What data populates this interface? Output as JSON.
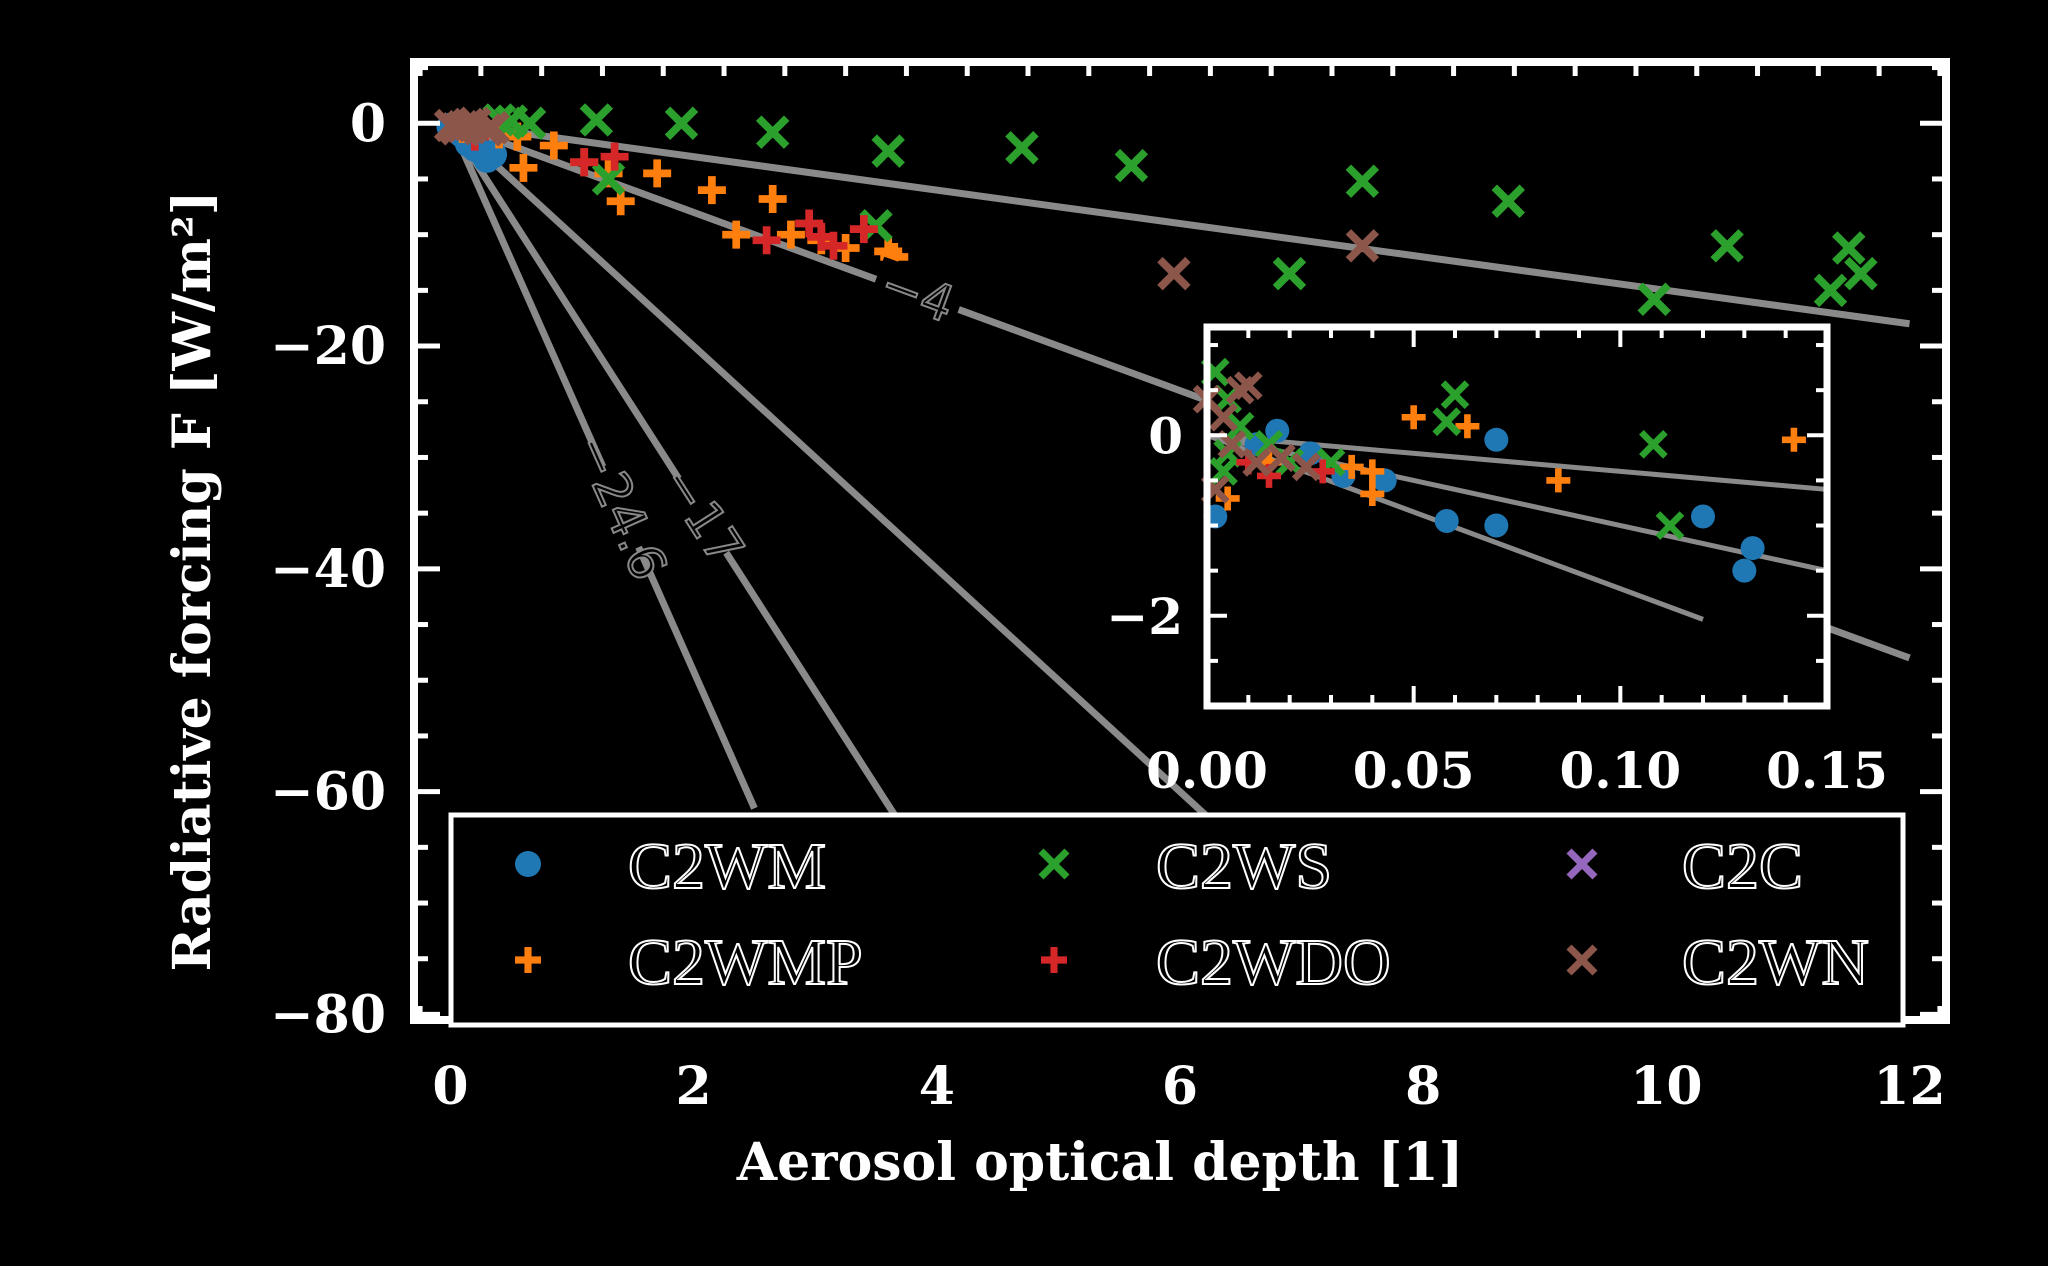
{
  "colors": {
    "background": "#000000",
    "frame": "#ffffff",
    "fit_line": "#8a8a8a",
    "C2WM": "#1f77b4",
    "C2WMP": "#ff7f0e",
    "C2WS": "#2ca02c",
    "C2WDO": "#d62728",
    "C2C": "#9467bd",
    "C2WN": "#8c564b"
  },
  "chart_data": [
    {
      "type": "scatter",
      "panel": "main",
      "xlabel": "Aerosol optical depth [1]",
      "ylabel": "Radiative forcing F [W/m²]",
      "xlim": [
        -0.3,
        12.3
      ],
      "ylim": [
        -80.5,
        5.5
      ],
      "xticks": [
        0,
        2,
        4,
        6,
        8,
        10,
        12
      ],
      "yticks": [
        0,
        -20,
        -40,
        -60,
        -80
      ],
      "xtick_labels": [
        "0",
        "2",
        "4",
        "6",
        "8",
        "10",
        "12"
      ],
      "ytick_labels": [
        "0",
        "−20",
        "−40",
        "−60",
        "−80"
      ],
      "legend_position": "lower",
      "fit_lines": [
        {
          "slope": -1.5,
          "x_range": [
            0,
            12
          ]
        },
        {
          "slope": -4,
          "x_range": [
            0,
            12
          ],
          "label": "−4"
        },
        {
          "slope": -17,
          "x_range": [
            0,
            3.7
          ],
          "label": "−17"
        },
        {
          "slope": -24.6,
          "x_range": [
            0,
            2.5
          ],
          "label": "−24.6"
        },
        {
          "slope": -10,
          "x_range": [
            0,
            6.5
          ]
        }
      ],
      "series": [
        {
          "name": "C2WM",
          "marker": "circle",
          "points": [
            [
              0.0,
              -0.3
            ],
            [
              0.1,
              -1.0
            ],
            [
              0.15,
              -1.8
            ],
            [
              0.2,
              -2.2
            ],
            [
              0.25,
              -2.5
            ],
            [
              0.3,
              -3.2
            ],
            [
              0.35,
              -2.8
            ]
          ]
        },
        {
          "name": "C2WMP",
          "marker": "plus",
          "points": [
            [
              0.1,
              -0.5
            ],
            [
              0.4,
              -1.0
            ],
            [
              0.55,
              -1.2
            ],
            [
              0.6,
              -4.0
            ],
            [
              0.85,
              -2.0
            ],
            [
              1.1,
              -3.5
            ],
            [
              1.3,
              -4.5
            ],
            [
              1.4,
              -7.0
            ],
            [
              1.7,
              -4.5
            ],
            [
              2.15,
              -6.0
            ],
            [
              2.35,
              -10.0
            ],
            [
              2.65,
              -6.8
            ],
            [
              2.8,
              -10.0
            ],
            [
              3.05,
              -10.5
            ],
            [
              3.25,
              -11.2
            ],
            [
              3.6,
              -11.5
            ],
            [
              3.65,
              -12.0
            ]
          ]
        },
        {
          "name": "C2WS",
          "marker": "x",
          "points": [
            [
              0.4,
              0.3
            ],
            [
              0.5,
              0.2
            ],
            [
              0.65,
              0.0
            ],
            [
              1.2,
              0.3
            ],
            [
              1.3,
              -5.0
            ],
            [
              1.9,
              0.0
            ],
            [
              2.65,
              -0.8
            ],
            [
              3.5,
              -9.2
            ],
            [
              3.6,
              -2.5
            ],
            [
              4.7,
              -2.2
            ],
            [
              5.6,
              -3.8
            ],
            [
              6.9,
              -13.5
            ],
            [
              7.5,
              -5.2
            ],
            [
              8.7,
              -7.0
            ],
            [
              9.9,
              -15.8
            ],
            [
              10.5,
              -11.0
            ],
            [
              11.35,
              -15.0
            ],
            [
              11.5,
              -11.2
            ],
            [
              11.6,
              -13.5
            ]
          ]
        },
        {
          "name": "C2WDO",
          "marker": "plus",
          "points": [
            [
              0.2,
              -1.2
            ],
            [
              1.1,
              -3.5
            ],
            [
              1.35,
              -3.0
            ],
            [
              2.6,
              -10.5
            ],
            [
              2.95,
              -9.0
            ],
            [
              3.05,
              -10.2
            ],
            [
              3.15,
              -11.0
            ],
            [
              3.4,
              -9.5
            ]
          ]
        },
        {
          "name": "C2C",
          "marker": "x",
          "points": []
        },
        {
          "name": "C2WN",
          "marker": "x",
          "points": [
            [
              0.0,
              -0.2
            ],
            [
              0.05,
              -0.5
            ],
            [
              0.1,
              -0.3
            ],
            [
              0.15,
              -0.1
            ],
            [
              0.2,
              0.0
            ],
            [
              0.3,
              -0.6
            ],
            [
              0.35,
              -0.4
            ],
            [
              5.95,
              -13.5
            ],
            [
              7.5,
              -11.0
            ]
          ]
        }
      ]
    },
    {
      "type": "scatter",
      "panel": "inset",
      "xlim": [
        0.0,
        0.15
      ],
      "ylim": [
        -3.0,
        1.2
      ],
      "xticks": [
        0.0,
        0.05,
        0.1,
        0.15
      ],
      "yticks": [
        0,
        -2
      ],
      "xtick_labels": [
        "0.00",
        "0.05",
        "0.10",
        "0.15"
      ],
      "ytick_labels": [
        "0",
        "−2"
      ],
      "fit_lines": [
        {
          "slope": -4,
          "x_range": [
            0,
            0.15
          ]
        },
        {
          "slope": -10,
          "x_range": [
            0,
            0.15
          ]
        },
        {
          "slope": -17,
          "x_range": [
            0,
            0.12
          ]
        }
      ],
      "series": [
        {
          "name": "C2WM",
          "marker": "circle",
          "points": [
            [
              0.002,
              -0.9
            ],
            [
              0.012,
              -0.1
            ],
            [
              0.017,
              0.05
            ],
            [
              0.025,
              -0.2
            ],
            [
              0.033,
              -0.45
            ],
            [
              0.043,
              -0.5
            ],
            [
              0.058,
              -0.95
            ],
            [
              0.07,
              -0.05
            ],
            [
              0.07,
              -1.0
            ],
            [
              0.12,
              -0.9
            ],
            [
              0.13,
              -1.5
            ],
            [
              0.132,
              -1.25
            ]
          ]
        },
        {
          "name": "C2WMP",
          "marker": "plus",
          "points": [
            [
              0.005,
              -0.7
            ],
            [
              0.015,
              -0.3
            ],
            [
              0.035,
              -0.35
            ],
            [
              0.04,
              -0.4
            ],
            [
              0.05,
              0.2
            ],
            [
              0.063,
              0.1
            ],
            [
              0.085,
              -0.5
            ],
            [
              0.142,
              -0.05
            ],
            [
              0.04,
              -0.65
            ]
          ]
        },
        {
          "name": "C2WS",
          "marker": "x",
          "points": [
            [
              0.002,
              0.7
            ],
            [
              0.005,
              0.4
            ],
            [
              0.008,
              0.1
            ],
            [
              0.005,
              -0.2
            ],
            [
              0.015,
              -0.1
            ],
            [
              0.02,
              -0.3
            ],
            [
              0.03,
              -0.3
            ],
            [
              0.058,
              0.15
            ],
            [
              0.06,
              0.45
            ],
            [
              0.108,
              -0.1
            ],
            [
              0.112,
              -1.0
            ],
            [
              0.004,
              -0.4
            ]
          ]
        },
        {
          "name": "C2WDO",
          "marker": "plus",
          "points": [
            [
              0.01,
              -0.3
            ],
            [
              0.015,
              -0.45
            ],
            [
              0.028,
              -0.4
            ]
          ]
        },
        {
          "name": "C2C",
          "marker": "x",
          "points": []
        },
        {
          "name": "C2WN",
          "marker": "x",
          "points": [
            [
              0.0,
              0.4
            ],
            [
              0.004,
              0.2
            ],
            [
              0.006,
              -0.1
            ],
            [
              0.008,
              0.5
            ],
            [
              0.01,
              0.55
            ],
            [
              0.012,
              -0.3
            ],
            [
              0.018,
              -0.25
            ],
            [
              0.024,
              -0.35
            ],
            [
              0.002,
              -0.6
            ]
          ]
        }
      ]
    }
  ]
}
